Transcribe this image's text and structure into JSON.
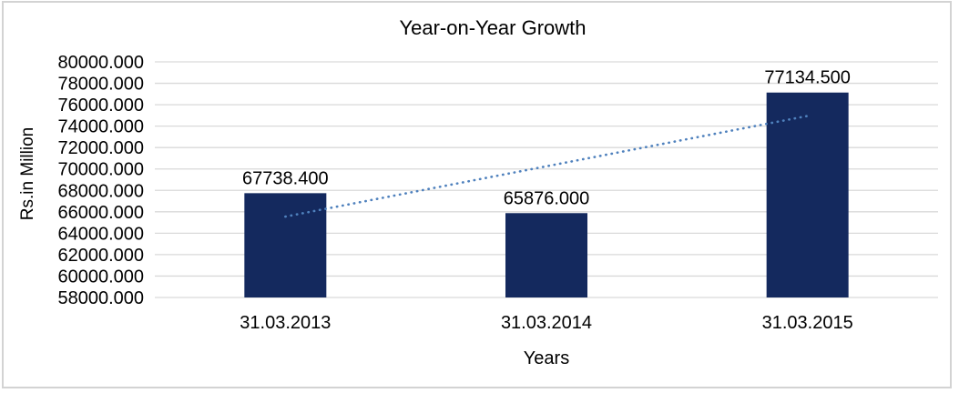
{
  "chart_data": {
    "type": "bar",
    "title": "Year-on-Year Growth",
    "xlabel": "Years",
    "ylabel": "Rs.in Million",
    "categories": [
      "31.03.2013",
      "31.03.2014",
      "31.03.2015"
    ],
    "values": [
      67738.4,
      65876.0,
      77134.5
    ],
    "data_labels": [
      "67738.400",
      "65876.000",
      "77134.500"
    ],
    "ylim": [
      58000,
      80000
    ],
    "ytick_step": 2000,
    "ytick_labels": [
      "80000.000",
      "78000.000",
      "76000.000",
      "74000.000",
      "72000.000",
      "70000.000",
      "68000.000",
      "66000.000",
      "64000.000",
      "62000.000",
      "60000.000",
      "58000.000"
    ],
    "grid": true,
    "legend": "none",
    "trendline": {
      "kind": "linear-dotted",
      "start_value": 65551.6,
      "end_value": 74947.7
    },
    "colors": {
      "bar": "#14295e",
      "trendline": "#4f81bd",
      "gridline": "#d9d9d9",
      "text": "#000000",
      "frame_border": "#d3d3d3",
      "background": "#ffffff"
    }
  }
}
